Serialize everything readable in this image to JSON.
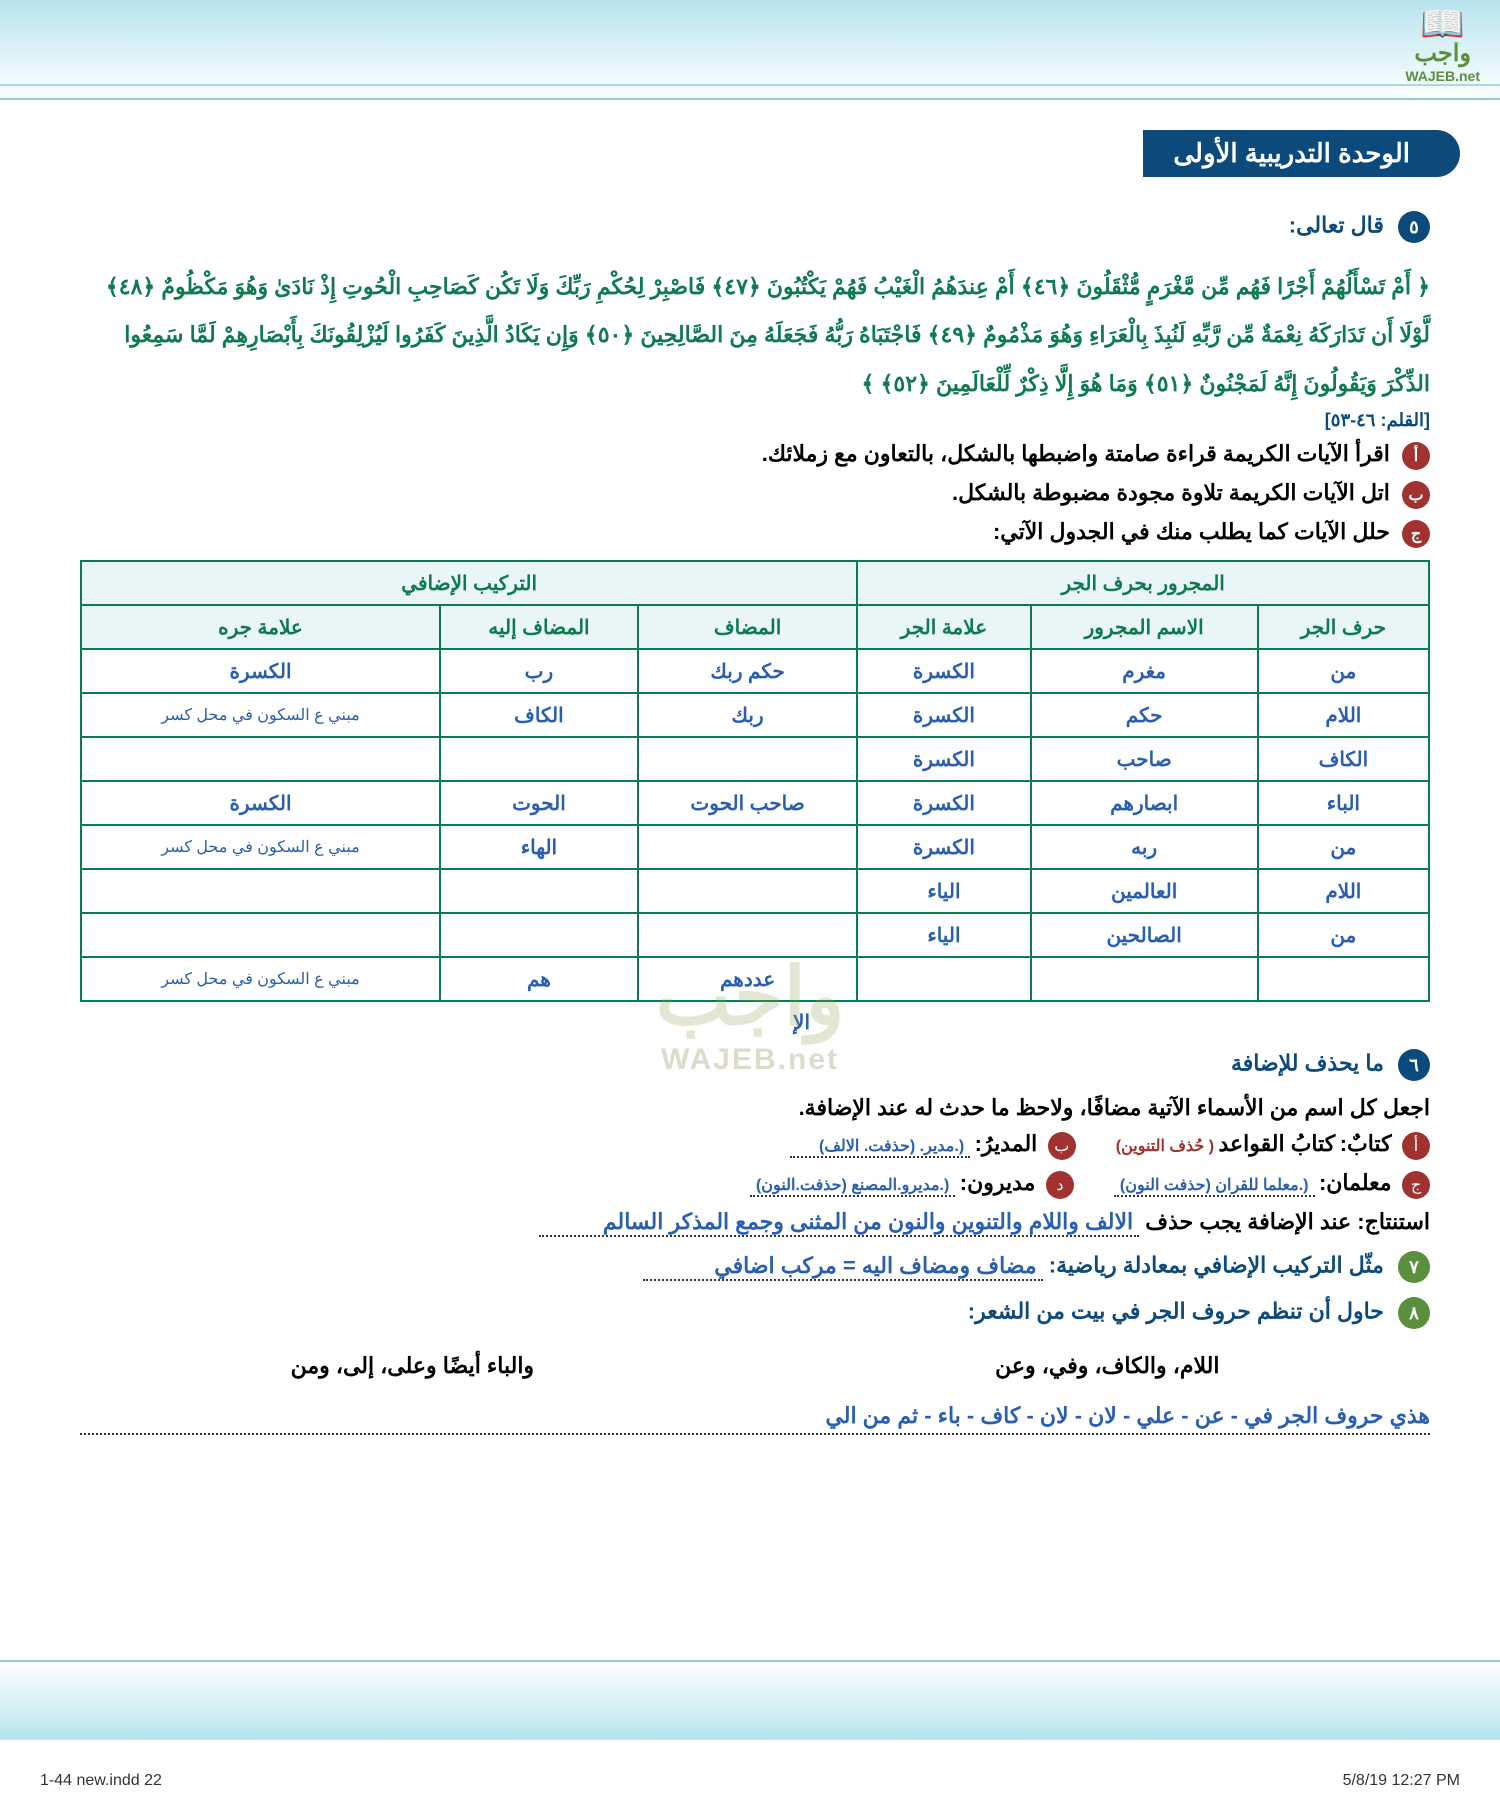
{
  "logo": {
    "ar": "واجب",
    "en": "WAJEB.net"
  },
  "unit_title": "الوحدة التدريبية الأولى",
  "q5": {
    "num": "٥",
    "label": "قال تعالى:",
    "quran": "﴿ أَمْ تَسْأَلُهُمْ أَجْرًا فَهُم مِّن مَّغْرَمٍ مُّثْقَلُونَ ﴿٤٦﴾ أَمْ عِندَهُمُ الْغَيْبُ فَهُمْ يَكْتُبُونَ ﴿٤٧﴾ فَاصْبِرْ لِحُكْمِ رَبِّكَ وَلَا تَكُن كَصَاحِبِ الْحُوتِ إِذْ نَادَىٰ وَهُوَ مَكْظُومٌ ﴿٤٨﴾ لَّوْلَا أَن تَدَارَكَهُ نِعْمَةٌ مِّن رَّبِّهِ لَنُبِذَ بِالْعَرَاءِ وَهُوَ مَذْمُومٌ ﴿٤٩﴾ فَاجْتَبَاهُ رَبُّهُ فَجَعَلَهُ مِنَ الصَّالِحِينَ ﴿٥٠﴾ وَإِن يَكَادُ الَّذِينَ كَفَرُوا لَيُزْلِقُونَكَ بِأَبْصَارِهِمْ لَمَّا سَمِعُوا الذِّكْرَ وَيَقُولُونَ إِنَّهُ لَمَجْنُونٌ ﴿٥١﴾ وَمَا هُوَ إِلَّا ذِكْرٌ لِّلْعَالَمِينَ ﴿٥٢﴾ ﴾",
    "ref": "[القلم: ٤٦-٥٣]"
  },
  "subs": {
    "a": {
      "mark": "أ",
      "text": "اقرأ الآيات الكريمة قراءة صامتة واضبطها بالشكل، بالتعاون مع زملائك."
    },
    "b": {
      "mark": "ب",
      "text": "اتل الآيات الكريمة تلاوة مجودة مضبوطة بالشكل."
    },
    "c": {
      "mark": "ج",
      "text": "حلل الآيات كما يطلب منك في الجدول الآتي:"
    }
  },
  "table": {
    "group_headers": [
      "المجرور بحرف الجر",
      "التركيب الإضافي"
    ],
    "columns": [
      "حرف الجر",
      "الاسم المجرور",
      "علامة الجر",
      "المضاف",
      "المضاف إليه",
      "علامة جره"
    ],
    "rows": [
      [
        "من",
        "مغرم",
        "الكسرة",
        "حكم ربك",
        "رب",
        "الكسرة"
      ],
      [
        "اللام",
        "حكم",
        "الكسرة",
        "ربك",
        "الكاف",
        "مبني ع السكون في محل كسر"
      ],
      [
        "الكاف",
        "صاحب",
        "الكسرة",
        "",
        "",
        ""
      ],
      [
        "الباء",
        "ابصارهم",
        "الكسرة",
        "صاحب الحوت",
        "الحوت",
        "الكسرة"
      ],
      [
        "من",
        "ربه",
        "الكسرة",
        "",
        "الهاء",
        "مبني ع السكون في محل كسر"
      ],
      [
        "اللام",
        "العالمين",
        "الياء",
        "",
        "",
        ""
      ],
      [
        "من",
        "الصالحين",
        "الياء",
        "",
        "",
        ""
      ],
      [
        "",
        "",
        "",
        "عددهم",
        "هم",
        "مبني ع السكون في محل كسر"
      ]
    ],
    "below": "الإ"
  },
  "q6": {
    "num": "٦",
    "title": "ما يحذف للإضافة",
    "instr": "اجعل كل اسم من الأسماء الآتية مضافًا، ولاحظ ما حدث له عند الإضافة.",
    "items": {
      "a": {
        "mark": "أ",
        "label": "كتابٌ:",
        "given": "كتابُ القواعد",
        "note": "( حُذف التنوين)"
      },
      "b": {
        "mark": "ب",
        "label": "المديرُ:",
        "ans": "(.مدير. (حذفت. الالف)"
      },
      "c": {
        "mark": "ج",
        "label": "معلمان:",
        "ans": "(.معلما للقران (حذفت النون)"
      },
      "d": {
        "mark": "د",
        "label": "مديرون:",
        "ans": "(.مديرو.المصنع (حذفت.النون)"
      }
    },
    "conclusion_label": "استنتاج: عند الإضافة يجب حذف",
    "conclusion_ans": "الالف واللام والتنوين والنون من المثنى وجمع المذكر السالم"
  },
  "q7": {
    "num": "٧",
    "label": "مثّل التركيب الإضافي بمعادلة رياضية:",
    "ans": "مضاف ومضاف اليه = مركب اضافي"
  },
  "q8": {
    "num": "٨",
    "label": "حاول أن تنظم حروف الجر في بيت من الشعر:",
    "line1a": "اللام، والكاف، وفي، وعن",
    "line1b": "والباء أيضًا وعلى، إلى، ومن",
    "ans": "هذي حروف الجر في - عن - علي - لان - لان - كاف - باء - ثم من الي"
  },
  "page_number": "٢٢",
  "footer": {
    "left": "1-44 new.indd   22",
    "right": "5/8/19   12:27 PM"
  },
  "watermark": {
    "ar": "واجب",
    "en": "WAJEB.net"
  }
}
